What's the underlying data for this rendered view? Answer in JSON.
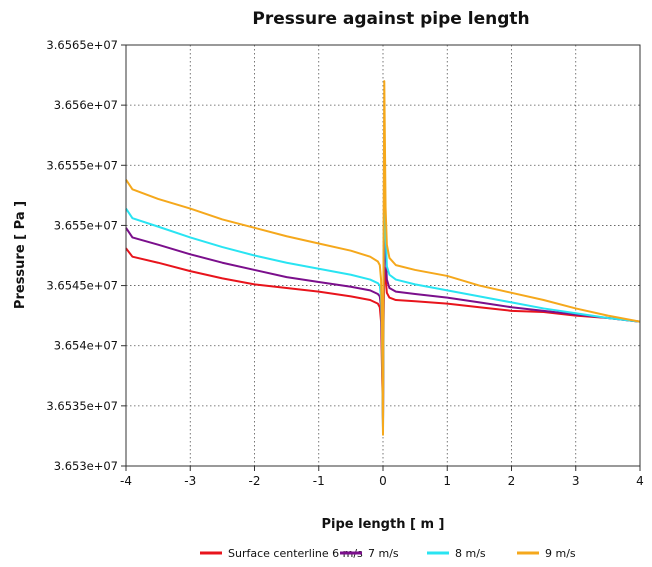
{
  "chart_data": {
    "type": "line",
    "title": "Pressure against pipe length",
    "xlabel": "Pipe length [ m ]",
    "ylabel": "Pressure [ Pa ]",
    "xlim": [
      -4,
      4
    ],
    "ylim": [
      36530000,
      36565000
    ],
    "grid": true,
    "legend_position": "bottom",
    "x_ticks": [
      -4,
      -3,
      -2,
      -1,
      0,
      1,
      2,
      3,
      4
    ],
    "x_tick_labels": [
      "-4",
      "-3",
      "-2",
      "-1",
      "0",
      "1",
      "2",
      "3",
      "4"
    ],
    "y_ticks": [
      36530000,
      36535000,
      36540000,
      36545000,
      36550000,
      36555000,
      36560000,
      36565000
    ],
    "y_tick_labels": [
      "3.653e+07",
      "3.6535e+07",
      "3.654e+07",
      "3.6545e+07",
      "3.655e+07",
      "3.6555e+07",
      "3.656e+07",
      "3.6565e+07"
    ],
    "series": [
      {
        "name": "Surface centerline 6 m/s",
        "color": "#e8141c",
        "x": [
          -4,
          -3.9,
          -3.5,
          -3,
          -2.5,
          -2,
          -1.5,
          -1,
          -0.5,
          -0.2,
          -0.08,
          -0.05,
          -0.03,
          -0.015,
          0,
          0.01,
          0.02,
          0.04,
          0.06,
          0.1,
          0.2,
          0.5,
          1,
          1.5,
          2,
          2.5,
          3,
          3.5,
          4
        ],
        "y": [
          36548100,
          36547400,
          36546900,
          36546200,
          36545600,
          36545100,
          36544800,
          36544500,
          36544100,
          36543800,
          36543500,
          36543200,
          36542000,
          36538000,
          36533800,
          36542000,
          36546500,
          36545700,
          36544400,
          36544000,
          36543800,
          36543700,
          36543500,
          36543200,
          36542900,
          36542800,
          36542500,
          36542300,
          36542000
        ]
      },
      {
        "name": "7 m/s",
        "color": "#7b0f8c",
        "x": [
          -4,
          -3.9,
          -3.5,
          -3,
          -2.5,
          -2,
          -1.5,
          -1,
          -0.5,
          -0.2,
          -0.08,
          -0.05,
          -0.03,
          -0.015,
          0,
          0.01,
          0.02,
          0.04,
          0.06,
          0.1,
          0.2,
          0.5,
          1,
          1.5,
          2,
          2.5,
          3,
          3.5,
          4
        ],
        "y": [
          36549800,
          36549000,
          36548400,
          36547600,
          36546900,
          36546300,
          36545700,
          36545300,
          36544900,
          36544600,
          36544300,
          36544100,
          36543200,
          36539500,
          36533200,
          36544500,
          36549500,
          36547800,
          36545500,
          36544800,
          36544500,
          36544300,
          36544000,
          36543600,
          36543200,
          36542900,
          36542600,
          36542300,
          36542000
        ]
      },
      {
        "name": "8 m/s",
        "color": "#29e4f2",
        "x": [
          -4,
          -3.9,
          -3.5,
          -3,
          -2.5,
          -2,
          -1.5,
          -1,
          -0.5,
          -0.2,
          -0.08,
          -0.05,
          -0.03,
          -0.015,
          0,
          0.01,
          0.02,
          0.04,
          0.06,
          0.1,
          0.2,
          0.5,
          1,
          1.5,
          2,
          2.5,
          3,
          3.5,
          4
        ],
        "y": [
          36551400,
          36550600,
          36549900,
          36549000,
          36548200,
          36547500,
          36546900,
          36546400,
          36545900,
          36545500,
          36545200,
          36545000,
          36544000,
          36540500,
          36532800,
          36547000,
          36553500,
          36549500,
          36546600,
          36545900,
          36545500,
          36545100,
          36544600,
          36544100,
          36543600,
          36543100,
          36542700,
          36542300,
          36542000
        ]
      },
      {
        "name": "9 m/s",
        "color": "#f5a81c",
        "x": [
          -4,
          -3.9,
          -3.5,
          -3,
          -2.5,
          -2,
          -1.5,
          -1,
          -0.5,
          -0.2,
          -0.08,
          -0.05,
          -0.03,
          -0.015,
          0,
          0.01,
          0.02,
          0.04,
          0.06,
          0.1,
          0.2,
          0.5,
          1,
          1.5,
          2,
          2.5,
          3,
          3.5,
          4
        ],
        "y": [
          36553800,
          36553000,
          36552200,
          36551400,
          36550500,
          36549800,
          36549100,
          36548500,
          36547900,
          36547400,
          36547000,
          36546700,
          36545500,
          36541500,
          36532600,
          36550500,
          36562000,
          36551500,
          36548400,
          36547300,
          36546700,
          36546300,
          36545800,
          36545000,
          36544400,
          36543800,
          36543100,
          36542500,
          36542000
        ]
      }
    ]
  }
}
